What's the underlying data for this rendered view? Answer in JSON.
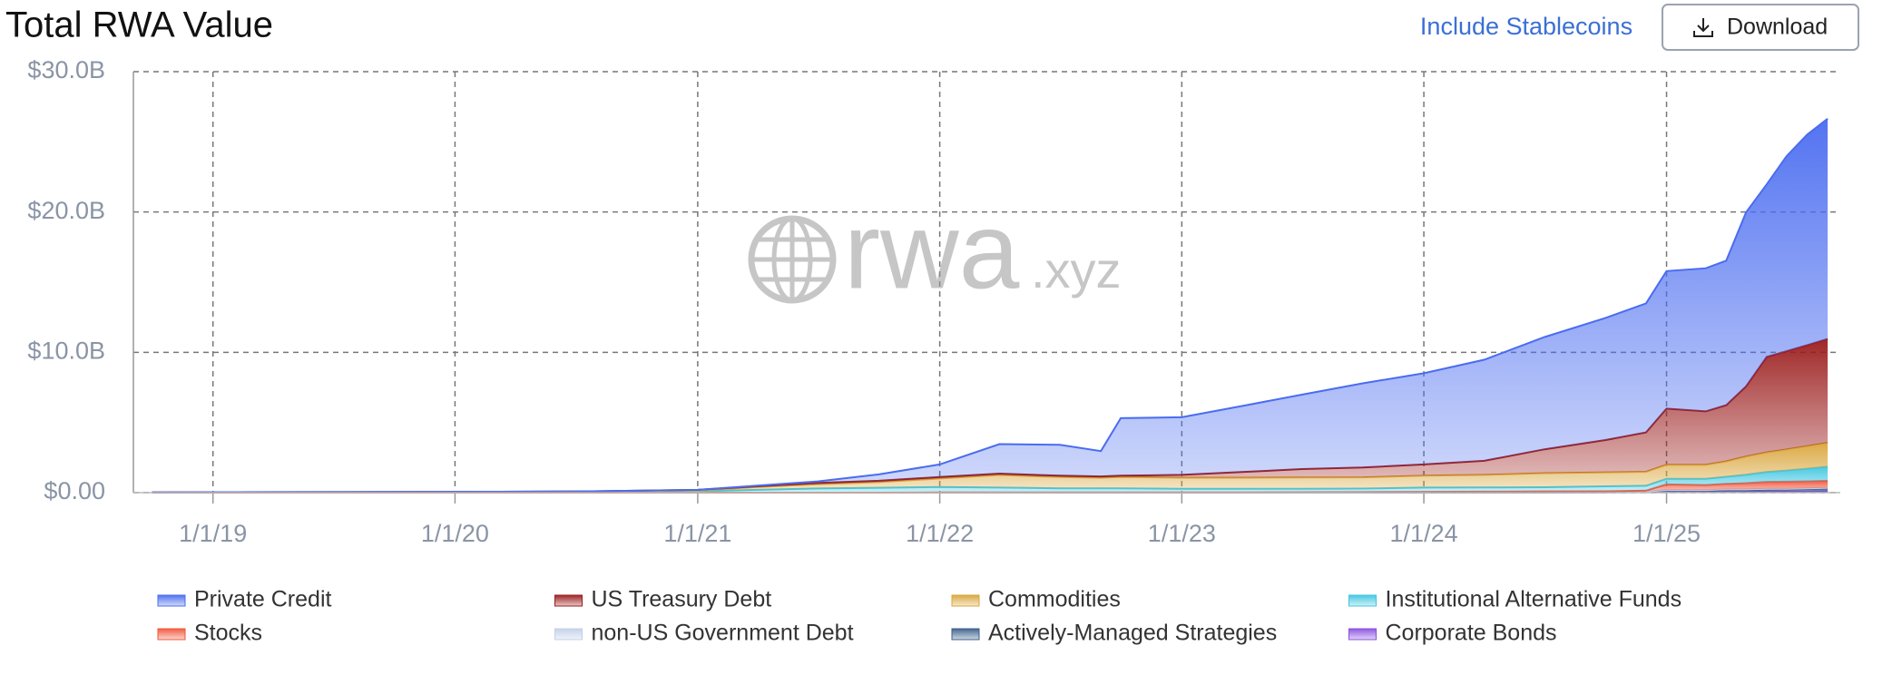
{
  "chart_data": {
    "type": "stacked_area",
    "title": "Total RWA Value",
    "toggle_label": "Include Stablecoins",
    "download_label": "Download",
    "watermark_main": "rwa",
    "watermark_suffix": ".xyz",
    "x": [
      "10/1/18",
      "1/1/19",
      "7/1/19",
      "1/1/20",
      "7/1/20",
      "1/1/21",
      "4/1/21",
      "7/1/21",
      "10/1/21",
      "1/1/22",
      "4/1/22",
      "7/1/22",
      "9/1/22",
      "10/1/22",
      "1/1/23",
      "4/1/23",
      "7/1/23",
      "10/1/23",
      "1/1/24",
      "4/1/24",
      "7/1/24",
      "10/1/24",
      "12/1/24",
      "1/1/25",
      "3/1/25",
      "4/1/25",
      "5/1/25",
      "6/1/25",
      "7/1/25",
      "8/1/25",
      "9/1/25"
    ],
    "xlim": [
      "9/3/18",
      "9/20/25"
    ],
    "xticks": [
      "1/1/19",
      "1/1/20",
      "1/1/21",
      "1/1/22",
      "1/1/23",
      "1/1/24",
      "1/1/25"
    ],
    "ylim": [
      0,
      30
    ],
    "yticks": [
      {
        "value": 0,
        "label": "$0.00"
      },
      {
        "value": 10,
        "label": "$10.0B"
      },
      {
        "value": 20,
        "label": "$20.0B"
      },
      {
        "value": 30,
        "label": "$30.0B"
      }
    ],
    "grid": true,
    "legend": "bottom",
    "series": [
      {
        "name": "Private Credit",
        "color": "#4a6cf0",
        "values": [
          0,
          0,
          0,
          0,
          0,
          0,
          0.05,
          0.1,
          0.45,
          0.9,
          2.1,
          2.2,
          1.8,
          4.1,
          4.1,
          4.7,
          5.3,
          6.0,
          6.5,
          7.2,
          8.0,
          8.7,
          9.2,
          9.8,
          10.2,
          10.3,
          12.4,
          12.3,
          13.9,
          15.0,
          15.7
        ]
      },
      {
        "name": "US Treasury Debt",
        "color": "#9b1c1c",
        "values": [
          0,
          0,
          0,
          0,
          0,
          0.05,
          0.05,
          0.1,
          0.1,
          0.1,
          0.1,
          0.1,
          0.1,
          0.1,
          0.2,
          0.4,
          0.6,
          0.7,
          0.8,
          1.0,
          1.7,
          2.3,
          2.8,
          4.0,
          3.8,
          4.0,
          5.0,
          6.8,
          7.0,
          7.2,
          7.4
        ]
      },
      {
        "name": "Commodities",
        "color": "#d9a53a",
        "values": [
          0,
          0,
          0,
          0,
          0,
          0.05,
          0.2,
          0.3,
          0.4,
          0.6,
          0.9,
          0.8,
          0.75,
          0.8,
          0.8,
          0.8,
          0.8,
          0.8,
          0.85,
          0.9,
          1.0,
          1.0,
          1.0,
          1.0,
          1.0,
          1.1,
          1.3,
          1.4,
          1.5,
          1.6,
          1.7
        ]
      },
      {
        "name": "Institutional Alternative Funds",
        "color": "#3fc6e0",
        "values": [
          0.02,
          0.03,
          0.04,
          0.06,
          0.08,
          0.1,
          0.2,
          0.3,
          0.35,
          0.4,
          0.35,
          0.3,
          0.3,
          0.3,
          0.25,
          0.25,
          0.25,
          0.25,
          0.3,
          0.3,
          0.3,
          0.35,
          0.35,
          0.4,
          0.45,
          0.5,
          0.6,
          0.7,
          0.8,
          0.9,
          1.0
        ]
      },
      {
        "name": "Stocks",
        "color": "#f2553a",
        "values": [
          0,
          0,
          0,
          0,
          0,
          0,
          0,
          0,
          0,
          0,
          0,
          0,
          0,
          0,
          0.01,
          0.01,
          0.01,
          0.02,
          0.03,
          0.04,
          0.05,
          0.05,
          0.06,
          0.4,
          0.35,
          0.4,
          0.45,
          0.5,
          0.5,
          0.5,
          0.5
        ]
      },
      {
        "name": "non-US Government Debt",
        "color": "#c3d0e8",
        "values": [
          0,
          0,
          0,
          0,
          0,
          0,
          0,
          0,
          0,
          0.01,
          0.01,
          0.01,
          0.01,
          0.01,
          0.01,
          0.01,
          0.02,
          0.02,
          0.02,
          0.02,
          0.02,
          0.02,
          0.03,
          0.04,
          0.04,
          0.05,
          0.05,
          0.05,
          0.05,
          0.05,
          0.05
        ]
      },
      {
        "name": "Actively-Managed Strategies",
        "color": "#3a5f8a",
        "values": [
          0,
          0,
          0,
          0,
          0,
          0,
          0,
          0,
          0,
          0,
          0,
          0,
          0,
          0,
          0,
          0,
          0,
          0,
          0,
          0,
          0,
          0.01,
          0.02,
          0.1,
          0.1,
          0.12,
          0.12,
          0.15,
          0.15,
          0.18,
          0.2
        ]
      },
      {
        "name": "Corporate Bonds",
        "color": "#8a4fe0",
        "values": [
          0,
          0,
          0,
          0,
          0,
          0,
          0,
          0,
          0,
          0,
          0,
          0,
          0,
          0,
          0,
          0,
          0,
          0,
          0.01,
          0.01,
          0.02,
          0.02,
          0.03,
          0.05,
          0.05,
          0.06,
          0.06,
          0.07,
          0.08,
          0.08,
          0.1
        ]
      }
    ]
  }
}
